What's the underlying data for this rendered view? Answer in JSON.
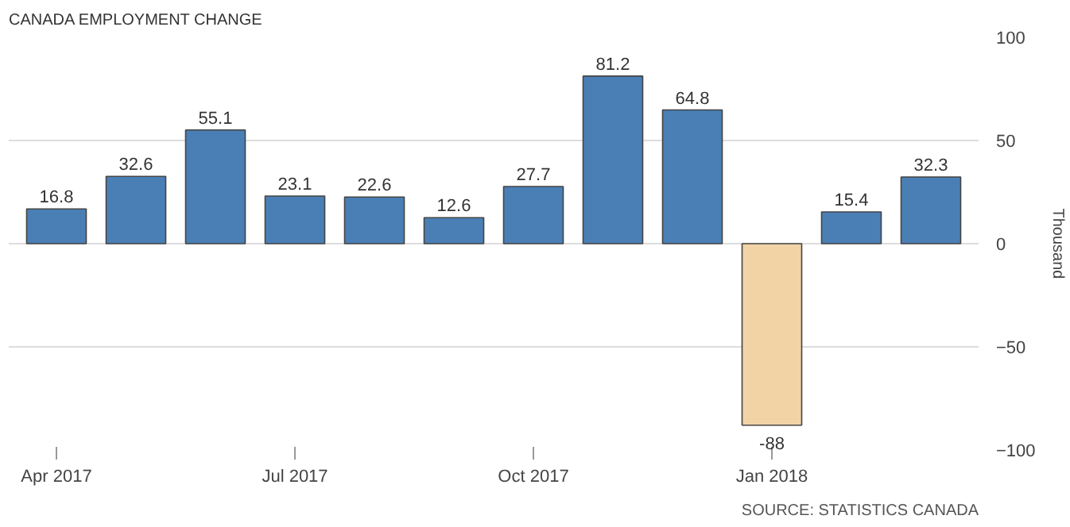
{
  "chart_data": {
    "type": "bar",
    "title": "CANADA EMPLOYMENT CHANGE",
    "categories": [
      "Apr 2017",
      null,
      null,
      "Jul 2017",
      null,
      null,
      "Oct 2017",
      null,
      null,
      "Jan 2018",
      null,
      null
    ],
    "values": [
      16.8,
      32.6,
      55.1,
      23.1,
      22.6,
      12.6,
      27.7,
      81.2,
      64.8,
      -88,
      15.4,
      32.3
    ],
    "colors": [
      "#4a7fb5",
      "#4a7fb5",
      "#4a7fb5",
      "#4a7fb5",
      "#4a7fb5",
      "#4a7fb5",
      "#4a7fb5",
      "#4a7fb5",
      "#4a7fb5",
      "#f2d3a6",
      "#4a7fb5",
      "#4a7fb5"
    ],
    "ylabel": "Thousand",
    "ylim": [
      -100,
      100
    ],
    "yticks": [
      -100,
      -50,
      0,
      50,
      100
    ],
    "grid": "y",
    "data_labels": true,
    "annotations": [
      "SOURCE: STATISTICS CANADA"
    ]
  }
}
